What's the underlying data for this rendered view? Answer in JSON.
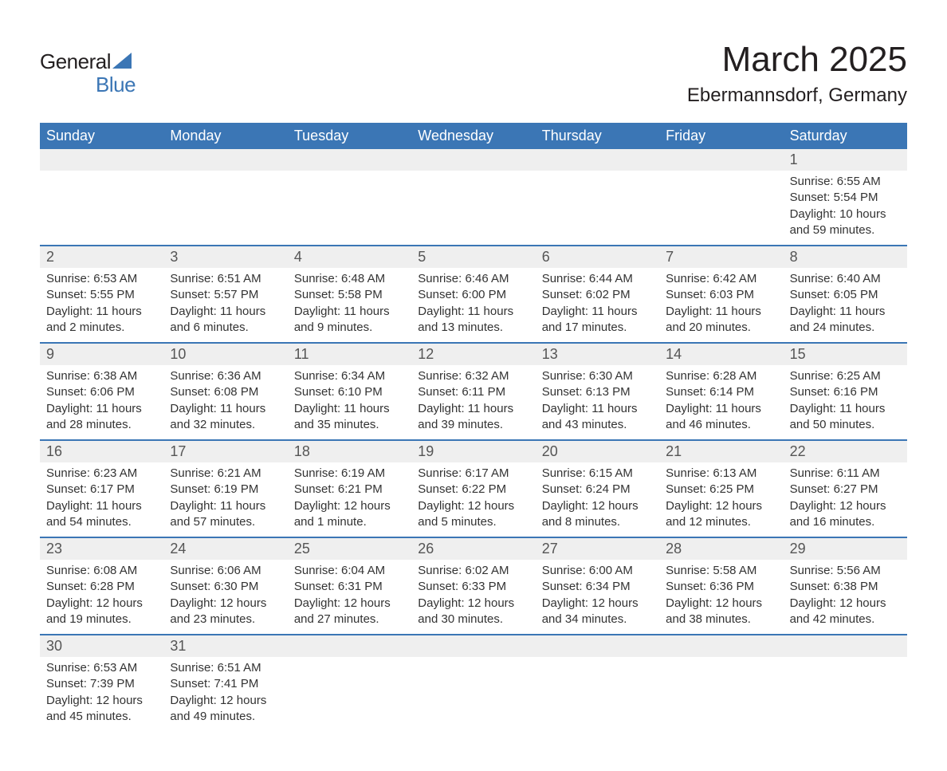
{
  "logo": {
    "text_general": "General",
    "text_blue": "Blue",
    "accent_color": "#3b76b5"
  },
  "header": {
    "month_title": "March 2025",
    "location": "Ebermannsdorf, Germany"
  },
  "styling": {
    "header_bg": "#3b76b5",
    "header_text_color": "#ffffff",
    "daynum_bg": "#efefef",
    "daynum_color": "#555555",
    "body_text_color": "#333333",
    "row_border_color": "#3b76b5",
    "page_bg": "#ffffff",
    "title_fontsize": 44,
    "location_fontsize": 24,
    "dayheader_fontsize": 18,
    "daynum_fontsize": 18,
    "celltext_fontsize": 15
  },
  "calendar": {
    "type": "table",
    "columns": [
      "Sunday",
      "Monday",
      "Tuesday",
      "Wednesday",
      "Thursday",
      "Friday",
      "Saturday"
    ],
    "weeks": [
      {
        "daynums": [
          "",
          "",
          "",
          "",
          "",
          "",
          "1"
        ],
        "cells": [
          null,
          null,
          null,
          null,
          null,
          null,
          {
            "sunrise": "Sunrise: 6:55 AM",
            "sunset": "Sunset: 5:54 PM",
            "day1": "Daylight: 10 hours",
            "day2": "and 59 minutes."
          }
        ]
      },
      {
        "daynums": [
          "2",
          "3",
          "4",
          "5",
          "6",
          "7",
          "8"
        ],
        "cells": [
          {
            "sunrise": "Sunrise: 6:53 AM",
            "sunset": "Sunset: 5:55 PM",
            "day1": "Daylight: 11 hours",
            "day2": "and 2 minutes."
          },
          {
            "sunrise": "Sunrise: 6:51 AM",
            "sunset": "Sunset: 5:57 PM",
            "day1": "Daylight: 11 hours",
            "day2": "and 6 minutes."
          },
          {
            "sunrise": "Sunrise: 6:48 AM",
            "sunset": "Sunset: 5:58 PM",
            "day1": "Daylight: 11 hours",
            "day2": "and 9 minutes."
          },
          {
            "sunrise": "Sunrise: 6:46 AM",
            "sunset": "Sunset: 6:00 PM",
            "day1": "Daylight: 11 hours",
            "day2": "and 13 minutes."
          },
          {
            "sunrise": "Sunrise: 6:44 AM",
            "sunset": "Sunset: 6:02 PM",
            "day1": "Daylight: 11 hours",
            "day2": "and 17 minutes."
          },
          {
            "sunrise": "Sunrise: 6:42 AM",
            "sunset": "Sunset: 6:03 PM",
            "day1": "Daylight: 11 hours",
            "day2": "and 20 minutes."
          },
          {
            "sunrise": "Sunrise: 6:40 AM",
            "sunset": "Sunset: 6:05 PM",
            "day1": "Daylight: 11 hours",
            "day2": "and 24 minutes."
          }
        ]
      },
      {
        "daynums": [
          "9",
          "10",
          "11",
          "12",
          "13",
          "14",
          "15"
        ],
        "cells": [
          {
            "sunrise": "Sunrise: 6:38 AM",
            "sunset": "Sunset: 6:06 PM",
            "day1": "Daylight: 11 hours",
            "day2": "and 28 minutes."
          },
          {
            "sunrise": "Sunrise: 6:36 AM",
            "sunset": "Sunset: 6:08 PM",
            "day1": "Daylight: 11 hours",
            "day2": "and 32 minutes."
          },
          {
            "sunrise": "Sunrise: 6:34 AM",
            "sunset": "Sunset: 6:10 PM",
            "day1": "Daylight: 11 hours",
            "day2": "and 35 minutes."
          },
          {
            "sunrise": "Sunrise: 6:32 AM",
            "sunset": "Sunset: 6:11 PM",
            "day1": "Daylight: 11 hours",
            "day2": "and 39 minutes."
          },
          {
            "sunrise": "Sunrise: 6:30 AM",
            "sunset": "Sunset: 6:13 PM",
            "day1": "Daylight: 11 hours",
            "day2": "and 43 minutes."
          },
          {
            "sunrise": "Sunrise: 6:28 AM",
            "sunset": "Sunset: 6:14 PM",
            "day1": "Daylight: 11 hours",
            "day2": "and 46 minutes."
          },
          {
            "sunrise": "Sunrise: 6:25 AM",
            "sunset": "Sunset: 6:16 PM",
            "day1": "Daylight: 11 hours",
            "day2": "and 50 minutes."
          }
        ]
      },
      {
        "daynums": [
          "16",
          "17",
          "18",
          "19",
          "20",
          "21",
          "22"
        ],
        "cells": [
          {
            "sunrise": "Sunrise: 6:23 AM",
            "sunset": "Sunset: 6:17 PM",
            "day1": "Daylight: 11 hours",
            "day2": "and 54 minutes."
          },
          {
            "sunrise": "Sunrise: 6:21 AM",
            "sunset": "Sunset: 6:19 PM",
            "day1": "Daylight: 11 hours",
            "day2": "and 57 minutes."
          },
          {
            "sunrise": "Sunrise: 6:19 AM",
            "sunset": "Sunset: 6:21 PM",
            "day1": "Daylight: 12 hours",
            "day2": "and 1 minute."
          },
          {
            "sunrise": "Sunrise: 6:17 AM",
            "sunset": "Sunset: 6:22 PM",
            "day1": "Daylight: 12 hours",
            "day2": "and 5 minutes."
          },
          {
            "sunrise": "Sunrise: 6:15 AM",
            "sunset": "Sunset: 6:24 PM",
            "day1": "Daylight: 12 hours",
            "day2": "and 8 minutes."
          },
          {
            "sunrise": "Sunrise: 6:13 AM",
            "sunset": "Sunset: 6:25 PM",
            "day1": "Daylight: 12 hours",
            "day2": "and 12 minutes."
          },
          {
            "sunrise": "Sunrise: 6:11 AM",
            "sunset": "Sunset: 6:27 PM",
            "day1": "Daylight: 12 hours",
            "day2": "and 16 minutes."
          }
        ]
      },
      {
        "daynums": [
          "23",
          "24",
          "25",
          "26",
          "27",
          "28",
          "29"
        ],
        "cells": [
          {
            "sunrise": "Sunrise: 6:08 AM",
            "sunset": "Sunset: 6:28 PM",
            "day1": "Daylight: 12 hours",
            "day2": "and 19 minutes."
          },
          {
            "sunrise": "Sunrise: 6:06 AM",
            "sunset": "Sunset: 6:30 PM",
            "day1": "Daylight: 12 hours",
            "day2": "and 23 minutes."
          },
          {
            "sunrise": "Sunrise: 6:04 AM",
            "sunset": "Sunset: 6:31 PM",
            "day1": "Daylight: 12 hours",
            "day2": "and 27 minutes."
          },
          {
            "sunrise": "Sunrise: 6:02 AM",
            "sunset": "Sunset: 6:33 PM",
            "day1": "Daylight: 12 hours",
            "day2": "and 30 minutes."
          },
          {
            "sunrise": "Sunrise: 6:00 AM",
            "sunset": "Sunset: 6:34 PM",
            "day1": "Daylight: 12 hours",
            "day2": "and 34 minutes."
          },
          {
            "sunrise": "Sunrise: 5:58 AM",
            "sunset": "Sunset: 6:36 PM",
            "day1": "Daylight: 12 hours",
            "day2": "and 38 minutes."
          },
          {
            "sunrise": "Sunrise: 5:56 AM",
            "sunset": "Sunset: 6:38 PM",
            "day1": "Daylight: 12 hours",
            "day2": "and 42 minutes."
          }
        ]
      },
      {
        "daynums": [
          "30",
          "31",
          "",
          "",
          "",
          "",
          ""
        ],
        "cells": [
          {
            "sunrise": "Sunrise: 6:53 AM",
            "sunset": "Sunset: 7:39 PM",
            "day1": "Daylight: 12 hours",
            "day2": "and 45 minutes."
          },
          {
            "sunrise": "Sunrise: 6:51 AM",
            "sunset": "Sunset: 7:41 PM",
            "day1": "Daylight: 12 hours",
            "day2": "and 49 minutes."
          },
          null,
          null,
          null,
          null,
          null
        ]
      }
    ]
  }
}
